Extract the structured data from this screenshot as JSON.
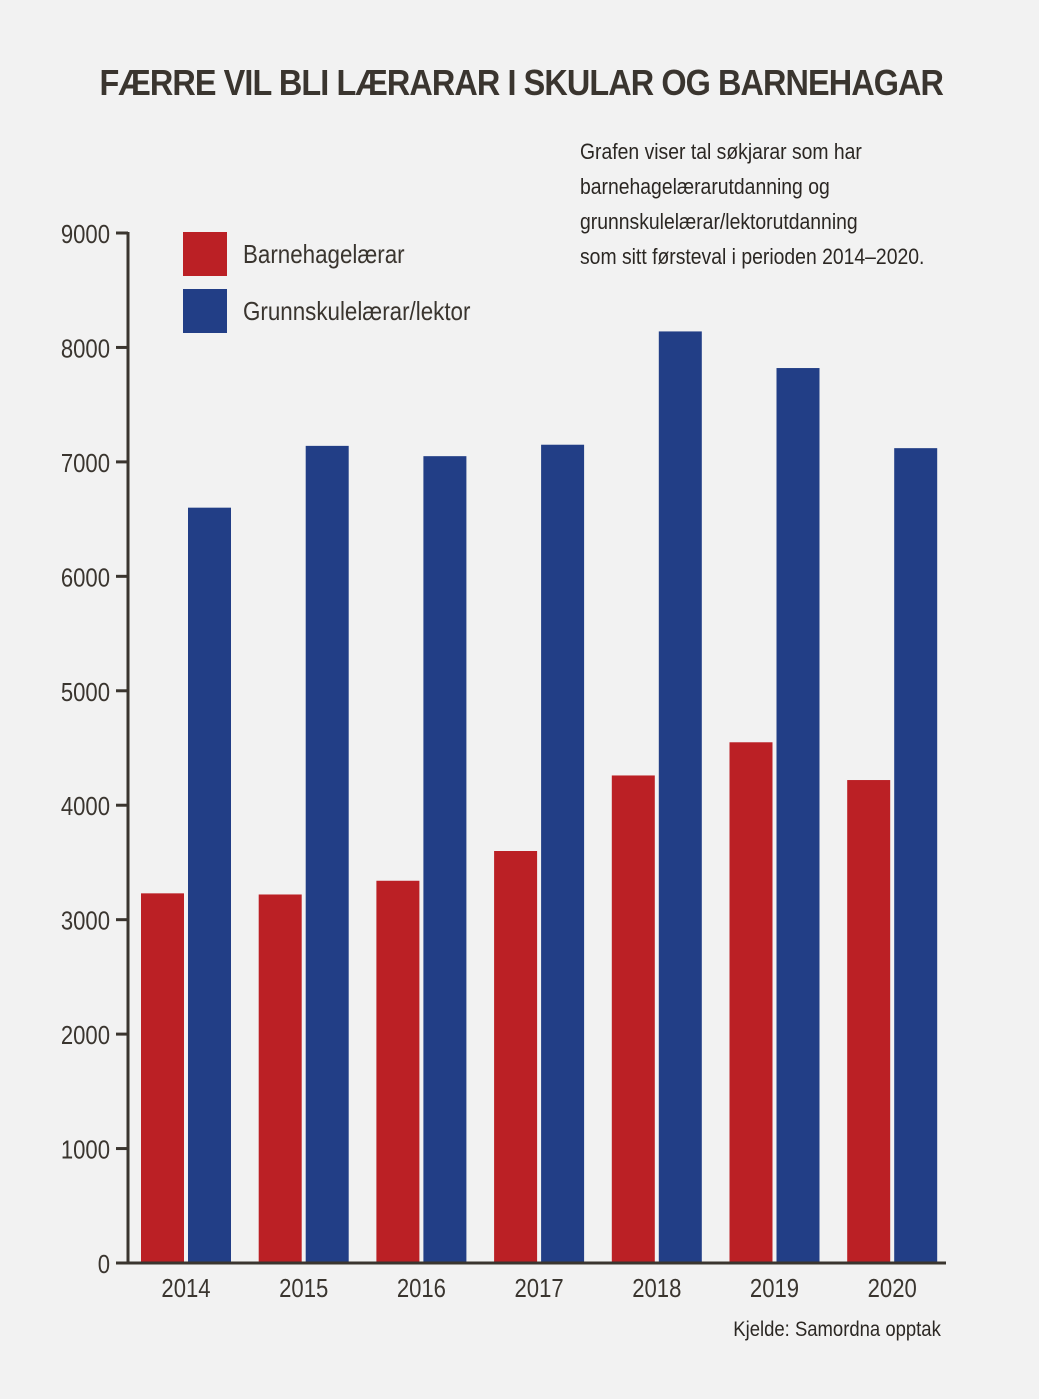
{
  "chart_data": {
    "type": "bar",
    "title": "FÆRRE VIL BLI LÆRARAR I SKULAR OG BARNEHAGAR",
    "subtitle": "Grafen viser tal søkjarar som har\nbarnehagelærarutdanning og\ngrunnskulelærar/lektorutdanning\nsom sitt førsteval i perioden 2014–2020.",
    "source": "Kjelde: Samordna opptak",
    "xlabel": "",
    "ylabel": "",
    "categories": [
      "2014",
      "2015",
      "2016",
      "2017",
      "2018",
      "2019",
      "2020"
    ],
    "ylim": [
      0,
      9000
    ],
    "yticks": [
      0,
      1000,
      2000,
      3000,
      4000,
      5000,
      6000,
      7000,
      8000,
      9000
    ],
    "grid": false,
    "legend_position": "top-left",
    "series": [
      {
        "name": "Barnehagelærar",
        "color": "#bb2025",
        "values": [
          3230,
          3220,
          3340,
          3600,
          4260,
          4550,
          4220
        ]
      },
      {
        "name": "Grunnskulelærar/lektor",
        "color": "#223e86",
        "values": [
          6600,
          7140,
          7050,
          7150,
          8140,
          7820,
          7120
        ]
      }
    ]
  }
}
